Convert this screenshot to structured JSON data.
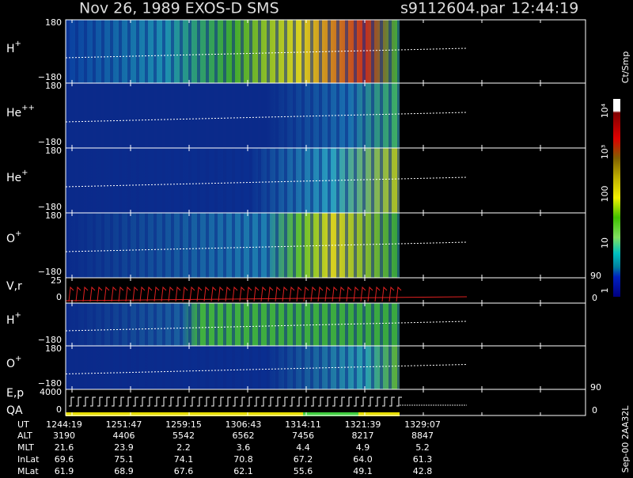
{
  "header": {
    "title": "Nov 26, 1989   EXOS-D SMS",
    "file": "s9112604.par",
    "time": "12:44:19"
  },
  "panels": [
    {
      "label": "H",
      "sup": "+",
      "top": "180",
      "bottom": "−180"
    },
    {
      "label": "He",
      "sup": "++",
      "top": "180",
      "bottom": "−180"
    },
    {
      "label": "He",
      "sup": "+",
      "top": "180",
      "bottom": "−180"
    },
    {
      "label": "O",
      "sup": "+",
      "top": "180",
      "bottom": "−180"
    },
    {
      "label": "V,r",
      "top": "25",
      "bottom": "0",
      "right_top": "90",
      "right_bottom": "0"
    },
    {
      "label": "H",
      "sup": "+",
      "bottom": "−180"
    },
    {
      "label": "O",
      "sup": "+",
      "top": "180",
      "bottom": "−180"
    },
    {
      "label": "E,p",
      "label2": "QA",
      "top": "4000",
      "bottom": "0",
      "right_top": "90",
      "right_bottom": "0"
    }
  ],
  "colorbar": {
    "unit": "Ct/Smp",
    "ticks": [
      "10⁴",
      "10³",
      "100",
      "10",
      "1"
    ]
  },
  "table": {
    "rows": [
      [
        "UT",
        "1244:19",
        "1251:47",
        "1259:15",
        "1306:43",
        "1314:11",
        "1321:39",
        "1329:07"
      ],
      [
        "ALT",
        "3190",
        "4406",
        "5542",
        "6562",
        "7456",
        "8217",
        "8847"
      ],
      [
        "MLT",
        "21.6",
        "23.9",
        "2.2",
        "3.6",
        "4.4",
        "4.9",
        "5.2"
      ],
      [
        "InLat",
        "69.6",
        "75.1",
        "74.1",
        "70.8",
        "67.2",
        "64.0",
        "61.3"
      ],
      [
        "MLat",
        "61.9",
        "68.9",
        "67.6",
        "62.1",
        "55.6",
        "49.1",
        "42.8"
      ]
    ]
  },
  "footer": "Sep-00  2AA32L"
}
